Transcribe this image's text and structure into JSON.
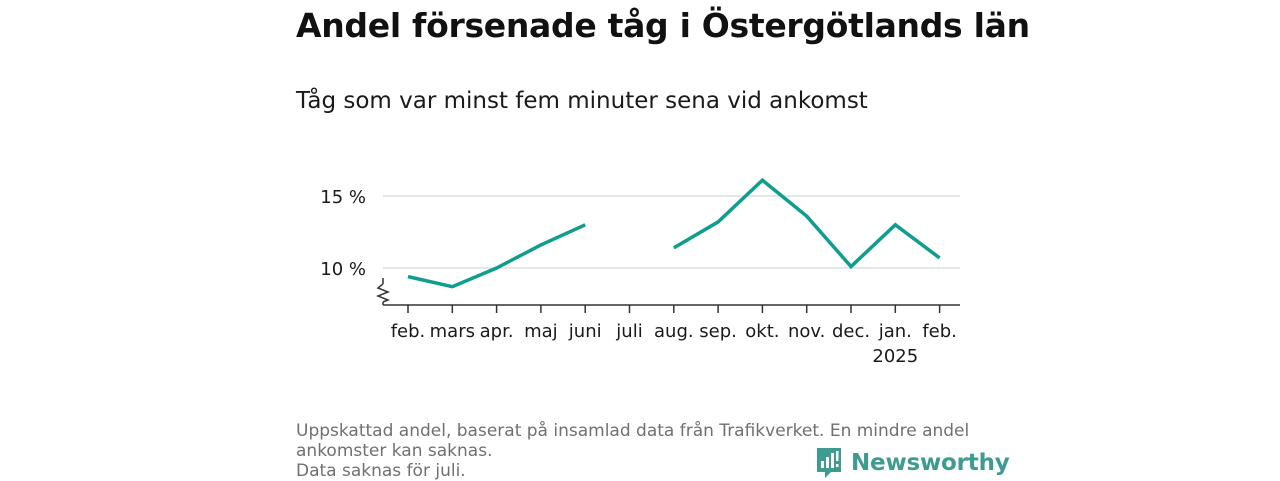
{
  "header": {
    "title": "Andel försenade tåg i Östergötlands län",
    "subtitle": "Tåg som var minst fem minuter sena vid ankomst"
  },
  "footer": {
    "note_lines": [
      "Uppskattad andel, baserat på insamlad data från Trafikverket. En mindre andel",
      "ankomster kan saknas.",
      "Data saknas för juli."
    ],
    "brand": "Newsworthy"
  },
  "colors": {
    "line": "#0e9e8e",
    "grid": "#dddddd",
    "axis": "#333333",
    "brand": "#3d9b8f"
  },
  "chart_data": {
    "type": "line",
    "categories": [
      "feb.",
      "mars",
      "apr.",
      "maj",
      "juni",
      "juli",
      "aug.",
      "sep.",
      "okt.",
      "nov.",
      "dec.",
      "jan.",
      "feb."
    ],
    "year_labels": [
      {
        "index": 11,
        "label": "2025"
      }
    ],
    "series": [
      {
        "values": [
          9.4,
          8.7,
          10.0,
          11.6,
          13.0,
          null,
          11.4,
          13.2,
          16.1,
          13.6,
          10.1,
          13.0,
          10.7
        ]
      }
    ],
    "yticks": [
      10,
      15
    ],
    "ytick_labels": [
      "10 %",
      "15 %"
    ],
    "ylim": [
      7.5,
      17.5
    ],
    "y_axis_break": true,
    "grid": true,
    "xlabel": "",
    "ylabel": ""
  }
}
